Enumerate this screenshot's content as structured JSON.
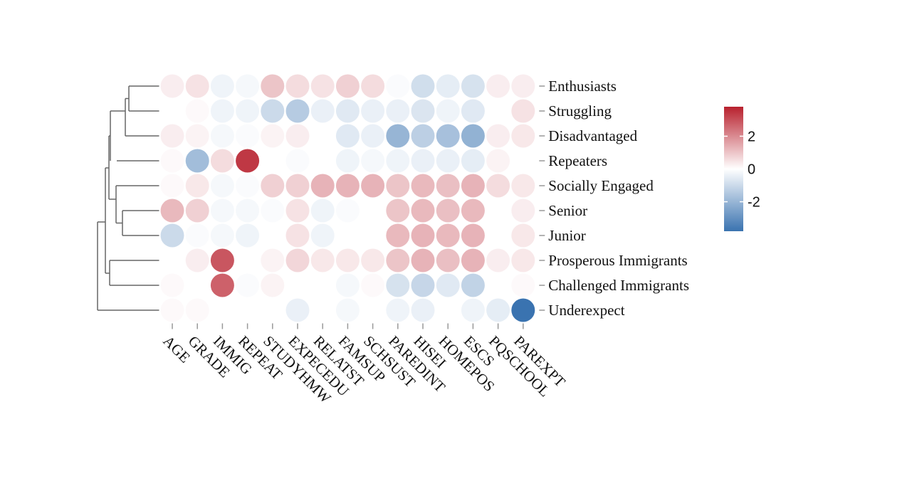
{
  "chart_data": {
    "type": "heatmap",
    "marker": "circle",
    "title": "",
    "xlabel": "",
    "ylabel": "",
    "rows": [
      "Enthusiasts",
      "Struggling",
      "Disadvantaged",
      "Repeaters",
      "Socially Engaged",
      "Senior",
      "Junior",
      "Prosperous Immigrants",
      "Challenged Immigrants",
      "Underexpect"
    ],
    "columns": [
      "AGE",
      "GRADE",
      "IMMIG",
      "REPEAT",
      "STUDYHMW",
      "EXPECEDU",
      "RELATST",
      "FAMSUP",
      "SCHSUST",
      "PAREDINT",
      "HISEI",
      "HOMEPOS",
      "ESCS",
      "PQSCHOOL",
      "PAREXPT"
    ],
    "values": [
      [
        0.3,
        0.5,
        -0.3,
        -0.2,
        1.0,
        0.6,
        0.5,
        0.8,
        0.6,
        -0.1,
        -0.9,
        -0.5,
        -0.8,
        0.3,
        0.3
      ],
      [
        0.0,
        0.1,
        -0.3,
        -0.3,
        -1.0,
        -1.4,
        -0.4,
        -0.6,
        -0.4,
        -0.4,
        -0.7,
        -0.3,
        -0.6,
        0.0,
        0.5
      ],
      [
        0.3,
        0.2,
        -0.2,
        -0.1,
        0.2,
        0.3,
        0.0,
        -0.6,
        -0.4,
        -2.0,
        -1.3,
        -1.7,
        -2.1,
        0.3,
        0.4
      ],
      [
        0.1,
        -1.8,
        0.6,
        3.4,
        0.0,
        -0.1,
        0.0,
        -0.3,
        -0.2,
        -0.3,
        -0.4,
        -0.4,
        -0.5,
        0.2,
        0.0
      ],
      [
        0.1,
        0.4,
        -0.2,
        -0.1,
        0.8,
        0.8,
        1.3,
        1.3,
        1.3,
        1.0,
        1.2,
        1.1,
        1.3,
        0.6,
        0.4
      ],
      [
        1.2,
        0.8,
        -0.2,
        -0.2,
        -0.1,
        0.5,
        -0.3,
        -0.1,
        0.0,
        1.0,
        1.2,
        1.1,
        1.2,
        0.0,
        0.3
      ],
      [
        -1.0,
        -0.1,
        -0.2,
        -0.3,
        0.0,
        0.5,
        -0.3,
        0.0,
        0.0,
        1.2,
        1.3,
        1.2,
        1.3,
        0.0,
        0.4
      ],
      [
        0.0,
        0.3,
        2.9,
        0.0,
        0.2,
        0.7,
        0.4,
        0.4,
        0.4,
        1.0,
        1.3,
        1.1,
        1.3,
        0.3,
        0.4
      ],
      [
        0.1,
        0.0,
        2.7,
        -0.1,
        0.2,
        0.0,
        0.0,
        -0.2,
        0.1,
        -0.8,
        -1.1,
        -0.6,
        -1.2,
        0.0,
        0.1
      ],
      [
        0.1,
        0.1,
        0.0,
        0.0,
        0.0,
        -0.4,
        0.0,
        -0.2,
        0.0,
        -0.3,
        -0.4,
        0.0,
        -0.3,
        -0.5,
        -3.8
      ]
    ],
    "color_scale": {
      "low": "#3a73b0",
      "mid": "#ffffff",
      "high": "#b8212e",
      "range": [
        -3.8,
        3.8
      ],
      "ticks": [
        2,
        0,
        -2
      ],
      "tick_labels": [
        "2",
        "0",
        "-2"
      ]
    },
    "dendrogram": "left",
    "legend_placement": "right"
  }
}
